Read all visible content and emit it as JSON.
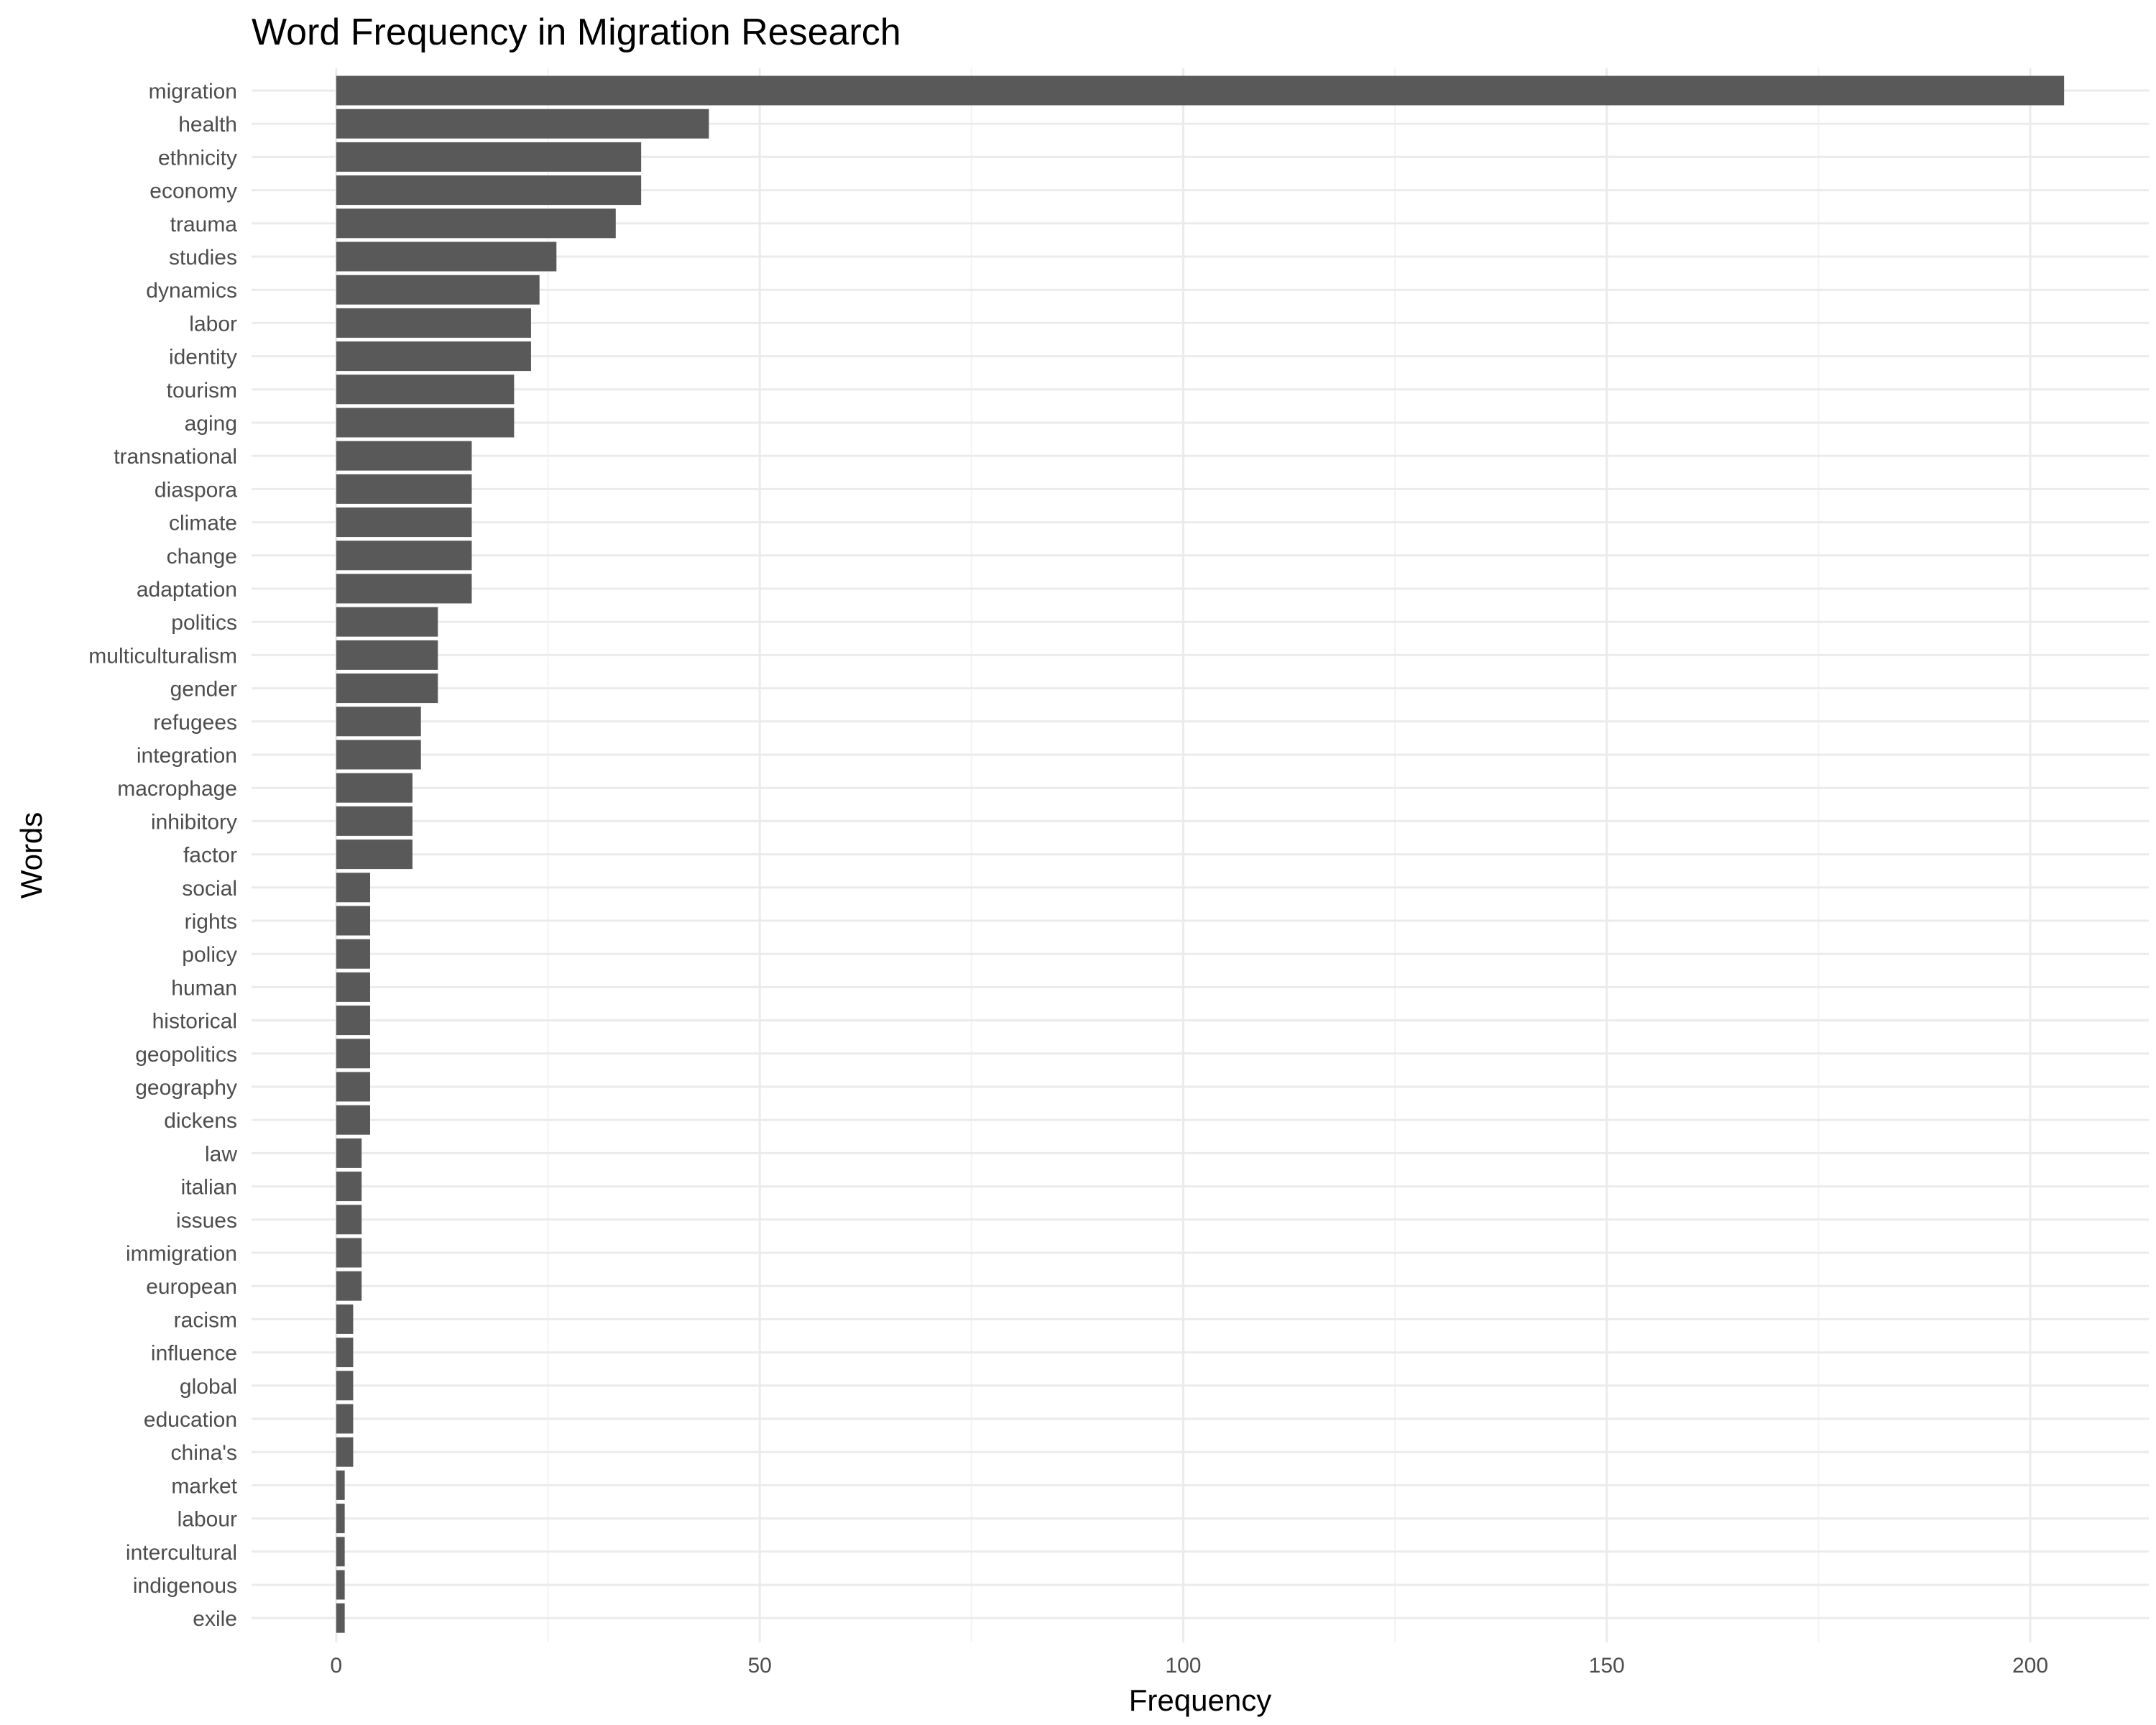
{
  "chart_data": {
    "type": "bar",
    "orientation": "horizontal",
    "title": "Word Frequency in Migration Research",
    "xlabel": "Frequency",
    "ylabel": "Words",
    "xlim": [
      -10,
      214
    ],
    "x_ticks": [
      0,
      50,
      100,
      150,
      200
    ],
    "grid": true,
    "bar_color": "#595959",
    "categories": [
      "migration",
      "health",
      "ethnicity",
      "economy",
      "trauma",
      "studies",
      "dynamics",
      "labor",
      "identity",
      "tourism",
      "aging",
      "transnational",
      "diaspora",
      "climate",
      "change",
      "adaptation",
      "politics",
      "multiculturalism",
      "gender",
      "refugees",
      "integration",
      "macrophage",
      "inhibitory",
      "factor",
      "social",
      "rights",
      "policy",
      "human",
      "historical",
      "geopolitics",
      "geography",
      "dickens",
      "law",
      "italian",
      "issues",
      "immigration",
      "european",
      "racism",
      "influence",
      "global",
      "education",
      "china's",
      "market",
      "labour",
      "intercultural",
      "indigenous",
      "exile"
    ],
    "values": [
      204,
      44,
      36,
      36,
      33,
      26,
      24,
      23,
      23,
      21,
      21,
      16,
      16,
      16,
      16,
      16,
      12,
      12,
      12,
      10,
      10,
      9,
      9,
      9,
      4,
      4,
      4,
      4,
      4,
      4,
      4,
      4,
      3,
      3,
      3,
      3,
      3,
      2,
      2,
      2,
      2,
      2,
      1,
      1,
      1,
      1,
      1
    ]
  }
}
